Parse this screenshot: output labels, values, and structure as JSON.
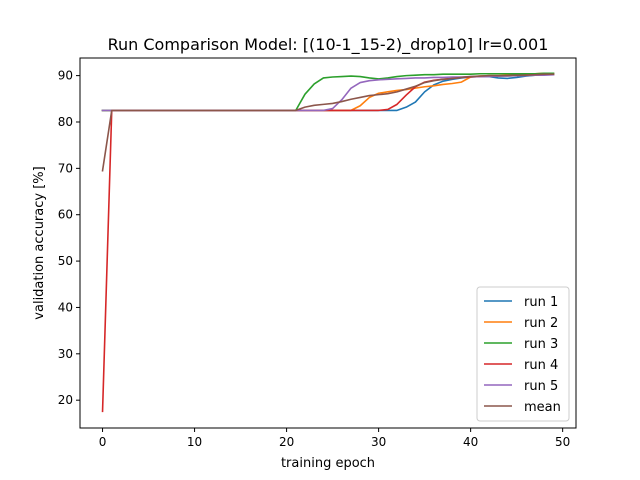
{
  "chart_data": {
    "type": "line",
    "title": "Run Comparison  Model: [(10-1_15-2)_drop10]  lr=0.001",
    "xlabel": "training epoch",
    "ylabel": "validation accuracy [%]",
    "xlim": [
      -2.45,
      51.45
    ],
    "ylim": [
      14.0,
      93.8
    ],
    "xticks": [
      0,
      10,
      20,
      30,
      40,
      50
    ],
    "yticks": [
      20,
      30,
      40,
      50,
      60,
      70,
      80,
      90
    ],
    "grid": false,
    "legend_position": "lower-right",
    "series": [
      {
        "name": "run 1",
        "color": "#1f77b4",
        "x": [
          0,
          1,
          2,
          3,
          4,
          5,
          6,
          7,
          8,
          9,
          10,
          11,
          12,
          13,
          14,
          15,
          16,
          17,
          18,
          19,
          20,
          21,
          22,
          23,
          24,
          25,
          26,
          27,
          28,
          29,
          30,
          31,
          32,
          33,
          34,
          35,
          36,
          37,
          38,
          39,
          40,
          41,
          42,
          43,
          44,
          45,
          46,
          47,
          48,
          49
        ],
        "y": [
          82.5,
          82.5,
          82.5,
          82.5,
          82.5,
          82.5,
          82.5,
          82.5,
          82.5,
          82.5,
          82.5,
          82.5,
          82.5,
          82.5,
          82.5,
          82.5,
          82.5,
          82.5,
          82.5,
          82.5,
          82.5,
          82.5,
          82.5,
          82.5,
          82.5,
          82.5,
          82.5,
          82.5,
          82.5,
          82.5,
          82.5,
          82.5,
          82.5,
          83.2,
          84.3,
          86.5,
          88.0,
          88.8,
          89.2,
          89.5,
          89.7,
          89.8,
          89.8,
          89.5,
          89.4,
          89.6,
          89.9,
          90.1,
          90.3,
          90.4
        ]
      },
      {
        "name": "run 2",
        "color": "#ff7f0e",
        "x": [
          0,
          1,
          2,
          3,
          4,
          5,
          6,
          7,
          8,
          9,
          10,
          11,
          12,
          13,
          14,
          15,
          16,
          17,
          18,
          19,
          20,
          21,
          22,
          23,
          24,
          25,
          26,
          27,
          28,
          29,
          30,
          31,
          32,
          33,
          34,
          35,
          36,
          37,
          38,
          39,
          40,
          41,
          42,
          43,
          44,
          45,
          46,
          47,
          48,
          49
        ],
        "y": [
          82.5,
          82.5,
          82.5,
          82.5,
          82.5,
          82.5,
          82.5,
          82.5,
          82.5,
          82.5,
          82.5,
          82.5,
          82.5,
          82.5,
          82.5,
          82.5,
          82.5,
          82.5,
          82.5,
          82.5,
          82.5,
          82.5,
          82.5,
          82.5,
          82.5,
          82.5,
          82.5,
          82.5,
          83.5,
          85.3,
          86.2,
          86.5,
          86.8,
          87.0,
          87.3,
          87.6,
          87.8,
          88.1,
          88.3,
          88.6,
          89.7,
          89.9,
          90.0,
          90.0,
          90.1,
          90.2,
          90.3,
          90.4,
          90.5,
          90.5
        ]
      },
      {
        "name": "run 3",
        "color": "#2ca02c",
        "x": [
          0,
          1,
          2,
          3,
          4,
          5,
          6,
          7,
          8,
          9,
          10,
          11,
          12,
          13,
          14,
          15,
          16,
          17,
          18,
          19,
          20,
          21,
          22,
          23,
          24,
          25,
          26,
          27,
          28,
          29,
          30,
          31,
          32,
          33,
          34,
          35,
          36,
          37,
          38,
          39,
          40,
          41,
          42,
          43,
          44,
          45,
          46,
          47,
          48,
          49
        ],
        "y": [
          82.5,
          82.5,
          82.5,
          82.5,
          82.5,
          82.5,
          82.5,
          82.5,
          82.5,
          82.5,
          82.5,
          82.5,
          82.5,
          82.5,
          82.5,
          82.5,
          82.5,
          82.5,
          82.5,
          82.5,
          82.5,
          82.5,
          86.0,
          88.2,
          89.5,
          89.7,
          89.8,
          89.9,
          89.8,
          89.5,
          89.3,
          89.5,
          89.8,
          90.0,
          90.1,
          90.2,
          90.2,
          90.3,
          90.3,
          90.3,
          90.3,
          90.4,
          90.4,
          90.4,
          90.4,
          90.4,
          90.4,
          90.4,
          90.5,
          90.5
        ]
      },
      {
        "name": "run 4",
        "color": "#d62728",
        "x": [
          0,
          1,
          2,
          3,
          4,
          5,
          6,
          7,
          8,
          9,
          10,
          11,
          12,
          13,
          14,
          15,
          16,
          17,
          18,
          19,
          20,
          21,
          22,
          23,
          24,
          25,
          26,
          27,
          28,
          29,
          30,
          31,
          32,
          33,
          34,
          35,
          36,
          37,
          38,
          39,
          40,
          41,
          42,
          43,
          44,
          45,
          46,
          47,
          48,
          49
        ],
        "y": [
          17.6,
          82.5,
          82.5,
          82.5,
          82.5,
          82.5,
          82.5,
          82.5,
          82.5,
          82.5,
          82.5,
          82.5,
          82.5,
          82.5,
          82.5,
          82.5,
          82.5,
          82.5,
          82.5,
          82.5,
          82.5,
          82.5,
          82.5,
          82.5,
          82.5,
          82.5,
          82.5,
          82.5,
          82.5,
          82.5,
          82.5,
          82.7,
          83.8,
          85.8,
          87.6,
          88.6,
          89.0,
          89.2,
          89.4,
          89.6,
          89.7,
          89.8,
          89.9,
          89.9,
          90.0,
          90.0,
          90.1,
          90.1,
          90.2,
          90.2
        ]
      },
      {
        "name": "run 5",
        "color": "#9467bd",
        "x": [
          0,
          1,
          2,
          3,
          4,
          5,
          6,
          7,
          8,
          9,
          10,
          11,
          12,
          13,
          14,
          15,
          16,
          17,
          18,
          19,
          20,
          21,
          22,
          23,
          24,
          25,
          26,
          27,
          28,
          29,
          30,
          31,
          32,
          33,
          34,
          35,
          36,
          37,
          38,
          39,
          40,
          41,
          42,
          43,
          44,
          45,
          46,
          47,
          48,
          49
        ],
        "y": [
          82.5,
          82.5,
          82.5,
          82.5,
          82.5,
          82.5,
          82.5,
          82.5,
          82.5,
          82.5,
          82.5,
          82.5,
          82.5,
          82.5,
          82.5,
          82.5,
          82.5,
          82.5,
          82.5,
          82.5,
          82.5,
          82.5,
          82.5,
          82.5,
          82.5,
          82.9,
          84.8,
          87.3,
          88.5,
          88.9,
          89.1,
          89.2,
          89.3,
          89.4,
          89.5,
          89.5,
          89.6,
          89.6,
          89.7,
          89.7,
          89.8,
          89.8,
          89.8,
          89.9,
          89.9,
          90.0,
          90.0,
          90.1,
          90.1,
          90.2
        ]
      },
      {
        "name": "mean",
        "color": "#8c564b",
        "x": [
          0,
          1,
          2,
          3,
          4,
          5,
          6,
          7,
          8,
          9,
          10,
          11,
          12,
          13,
          14,
          15,
          16,
          17,
          18,
          19,
          20,
          21,
          22,
          23,
          24,
          25,
          26,
          27,
          28,
          29,
          30,
          31,
          32,
          33,
          34,
          35,
          36,
          37,
          38,
          39,
          40,
          41,
          42,
          43,
          44,
          45,
          46,
          47,
          48,
          49
        ],
        "y": [
          69.5,
          82.5,
          82.5,
          82.5,
          82.5,
          82.5,
          82.5,
          82.5,
          82.5,
          82.5,
          82.5,
          82.5,
          82.5,
          82.5,
          82.5,
          82.5,
          82.5,
          82.5,
          82.5,
          82.5,
          82.5,
          82.5,
          83.2,
          83.6,
          83.8,
          84.0,
          84.4,
          84.9,
          85.3,
          85.7,
          85.9,
          86.1,
          86.5,
          87.1,
          87.7,
          88.5,
          88.9,
          89.2,
          89.4,
          89.6,
          89.8,
          89.9,
          90.0,
          90.0,
          90.0,
          90.1,
          90.1,
          90.2,
          90.3,
          90.3
        ]
      }
    ]
  }
}
